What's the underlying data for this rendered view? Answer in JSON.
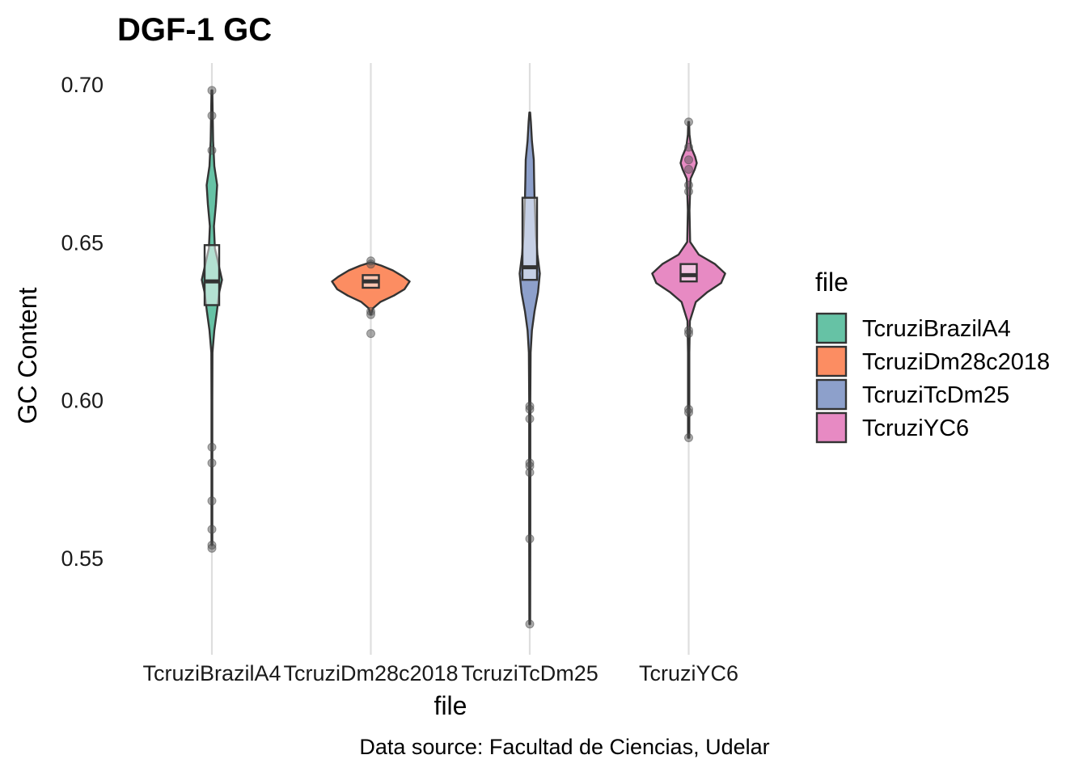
{
  "chart_data": {
    "type": "violin",
    "title": "DGF-1 GC",
    "xlabel": "file",
    "ylabel": "GC Content",
    "caption": "Data source: Facultad de Ciencias, Udelar",
    "categories": [
      "TcruziBrazilA4",
      "TcruziDm28c2018",
      "TcruziTcDm25",
      "TcruziYC6"
    ],
    "y_ticks": [
      "0.55",
      "0.60",
      "0.65",
      "0.70"
    ],
    "y_tick_values": [
      0.55,
      0.6,
      0.65,
      0.7
    ],
    "ylim": [
      0.518,
      0.707
    ],
    "grid": "vertical major lines at each category",
    "legend": {
      "title": "file",
      "placement": "right",
      "entries": [
        "TcruziBrazilA4",
        "TcruziDm28c2018",
        "TcruziTcDm25",
        "TcruziYC6"
      ]
    },
    "series": [
      {
        "name": "TcruziBrazilA4",
        "color": "#66c2a5",
        "box": {
          "q1": 0.63,
          "median": 0.6375,
          "q3": 0.649
        },
        "violin_range": [
          0.554,
          0.698
        ],
        "density": [
          [
            0.554,
            0.2
          ],
          [
            0.575,
            0.2
          ],
          [
            0.6,
            0.2
          ],
          [
            0.615,
            0.3
          ],
          [
            0.622,
            1.2
          ],
          [
            0.628,
            2.5
          ],
          [
            0.634,
            3.6
          ],
          [
            0.638,
            5.0
          ],
          [
            0.642,
            3.6
          ],
          [
            0.648,
            1.5
          ],
          [
            0.655,
            1.0
          ],
          [
            0.662,
            2.0
          ],
          [
            0.668,
            2.6
          ],
          [
            0.674,
            1.2
          ],
          [
            0.682,
            0.6
          ],
          [
            0.69,
            0.4
          ],
          [
            0.698,
            0.2
          ]
        ],
        "outliers": [
          0.698,
          0.69,
          0.679,
          0.585,
          0.58,
          0.568,
          0.559,
          0.554,
          0.553
        ]
      },
      {
        "name": "TcruziDm28c2018",
        "color": "#fc8d62",
        "box": {
          "q1": 0.6355,
          "median": 0.6375,
          "q3": 0.6395
        },
        "violin_range": [
          0.627,
          0.6435
        ],
        "density": [
          [
            0.627,
            0.3
          ],
          [
            0.629,
            2.0
          ],
          [
            0.631,
            9
          ],
          [
            0.633,
            22
          ],
          [
            0.635,
            32
          ],
          [
            0.6375,
            37
          ],
          [
            0.639,
            31
          ],
          [
            0.641,
            21
          ],
          [
            0.6425,
            10
          ],
          [
            0.6435,
            0.5
          ]
        ],
        "outliers": [
          0.644,
          0.643,
          0.628,
          0.627,
          0.621
        ]
      },
      {
        "name": "TcruziTcDm25",
        "color": "#8da0cb",
        "box": {
          "q1": 0.638,
          "median": 0.642,
          "q3": 0.664
        },
        "violin_range": [
          0.529,
          0.691
        ],
        "density": [
          [
            0.529,
            0.2
          ],
          [
            0.56,
            0.3
          ],
          [
            0.6,
            0.3
          ],
          [
            0.615,
            0.5
          ],
          [
            0.622,
            1.2
          ],
          [
            0.628,
            2.6
          ],
          [
            0.634,
            4.5
          ],
          [
            0.64,
            5.5
          ],
          [
            0.646,
            4.2
          ],
          [
            0.652,
            3.4
          ],
          [
            0.658,
            3.0
          ],
          [
            0.664,
            2.6
          ],
          [
            0.67,
            2.4
          ],
          [
            0.676,
            2.2
          ],
          [
            0.682,
            1.2
          ],
          [
            0.688,
            0.6
          ],
          [
            0.691,
            0.2
          ]
        ],
        "outliers": [
          0.598,
          0.597,
          0.594,
          0.58,
          0.579,
          0.577,
          0.556,
          0.529
        ]
      },
      {
        "name": "TcruziYC6",
        "color": "#e78ac3",
        "box": {
          "q1": 0.6375,
          "median": 0.6395,
          "q3": 0.643
        },
        "violin_range": [
          0.588,
          0.688
        ],
        "density": [
          [
            0.588,
            0.3
          ],
          [
            0.6,
            0.3
          ],
          [
            0.615,
            0.3
          ],
          [
            0.625,
            0.6
          ],
          [
            0.631,
            3.5
          ],
          [
            0.634,
            9
          ],
          [
            0.637,
            16
          ],
          [
            0.64,
            18
          ],
          [
            0.643,
            13
          ],
          [
            0.646,
            5
          ],
          [
            0.65,
            0.7
          ],
          [
            0.66,
            0.4
          ],
          [
            0.67,
            0.9
          ],
          [
            0.673,
            3.0
          ],
          [
            0.675,
            4.0
          ],
          [
            0.677,
            3.2
          ],
          [
            0.68,
            1.2
          ],
          [
            0.684,
            0.4
          ],
          [
            0.688,
            0.2
          ]
        ],
        "outliers": [
          0.688,
          0.68,
          0.676,
          0.673,
          0.668,
          0.666,
          0.622,
          0.621,
          0.597,
          0.596,
          0.588
        ]
      }
    ]
  }
}
